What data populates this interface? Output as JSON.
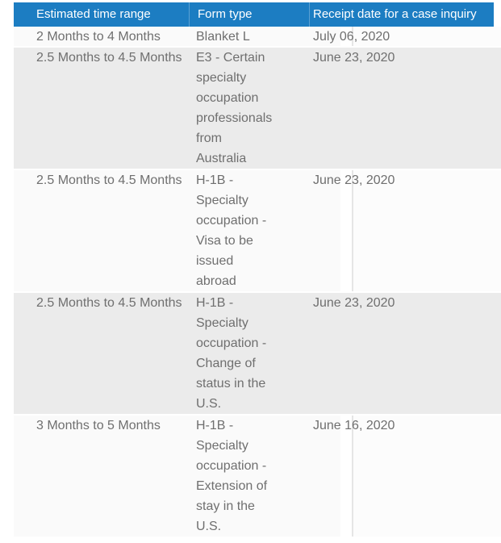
{
  "colors": {
    "header_bg": "#1c7dc2",
    "header_text": "#ffffff",
    "striped_row_bg": "#ebebeb",
    "plain_row_bg": "#fafafa",
    "body_text": "#6f6f6f"
  },
  "table": {
    "headers": [
      "Estimated time range",
      "Form type",
      "Receipt date for a case inquiry"
    ],
    "rows": [
      {
        "range": "2 Months to 4 Months",
        "form_type": "Blanket L",
        "receipt_date": "July 06, 2020"
      },
      {
        "range": "2.5 Months to 4.5 Months",
        "form_type": "E3 - Certain\nspecialty\noccupation\nprofessionals\nfrom\nAustralia",
        "receipt_date": "June 23, 2020"
      },
      {
        "range": "2.5 Months to 4.5 Months",
        "form_type": "H-1B -\nSpecialty\noccupation -\nVisa to be\nissued\nabroad",
        "receipt_date": "June 23, 2020"
      },
      {
        "range": "2.5 Months to 4.5 Months",
        "form_type": "H-1B -\nSpecialty\noccupation -\nChange of\nstatus in the\nU.S.",
        "receipt_date": "June 23, 2020"
      },
      {
        "range": "3 Months to 5 Months",
        "form_type": "H-1B -\nSpecialty\noccupation -\nExtension of\nstay in the\nU.S.",
        "receipt_date": "June 16, 2020"
      }
    ]
  }
}
